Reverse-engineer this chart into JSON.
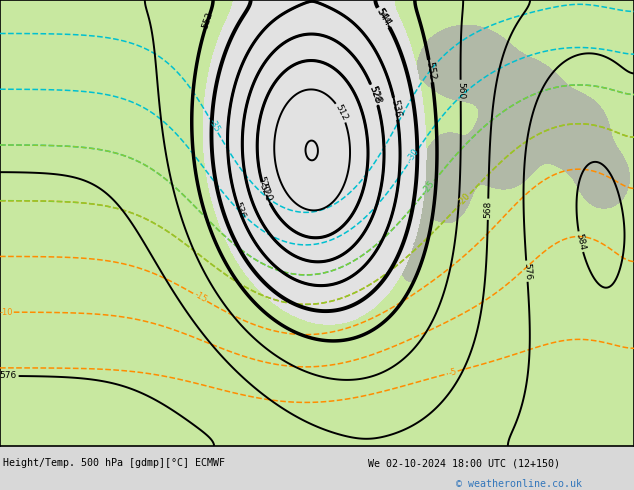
{
  "title_bottom_left": "Height/Temp. 500 hPa [gdmp][°C] ECMWF",
  "title_bottom_right": "We 02-10-2024 18:00 UTC (12+150)",
  "copyright": "© weatheronline.co.uk",
  "bg_color": "#d8d8d8",
  "map_bg_color": "#e2e2e2",
  "land_green_color": "#c8e8a0",
  "copyright_color": "#3377bb",
  "figsize": [
    6.34,
    4.9
  ],
  "dpi": 100,
  "orange": "#ff8c00",
  "red": "#ee1111",
  "cyan": "#00c0d0",
  "ygreen": "#88cc30",
  "black": "#000000"
}
